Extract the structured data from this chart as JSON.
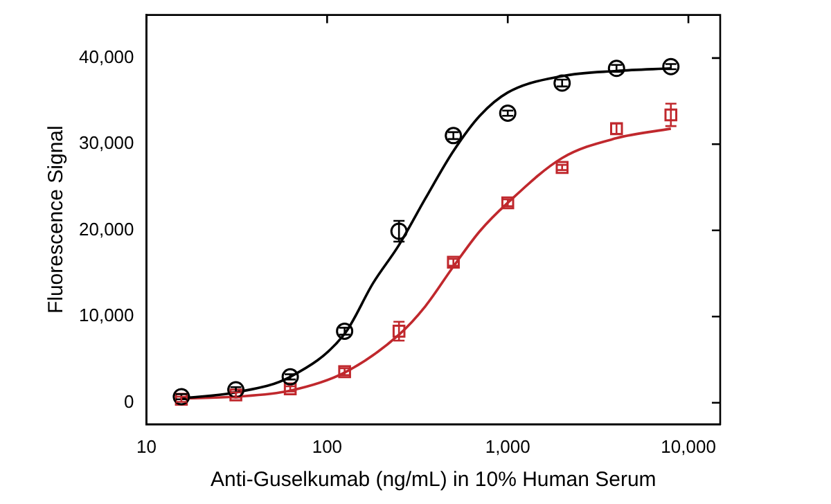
{
  "chart_data": {
    "type": "scatter",
    "xlabel": "Anti-Guselkumab (ng/mL) in 10% Human Serum",
    "ylabel": "Fluorescence Signal",
    "log": "x",
    "xlim": [
      10,
      15000
    ],
    "xticks": [
      10,
      100,
      {
        "value": 1000,
        "label": "1,000"
      },
      {
        "value": 10000,
        "label": "10,000"
      }
    ],
    "ylim": [
      -2500,
      45000
    ],
    "yticks": [
      0,
      {
        "value": 10000,
        "label": "10,000"
      },
      {
        "value": 20000,
        "label": "20,000"
      },
      {
        "value": 30000,
        "label": "30,000"
      },
      {
        "value": 40000,
        "label": "40,000"
      }
    ],
    "grid": false,
    "series": [
      {
        "marker": "circle",
        "color": "#000000",
        "x": [
          15.6,
          31.25,
          62.5,
          125,
          250,
          500,
          1000,
          2000,
          4000,
          8000
        ],
        "values": [
          700,
          1500,
          3000,
          8300,
          19900,
          31000,
          33600,
          37100,
          38800,
          39000
        ],
        "errors": [
          300,
          300,
          300,
          400,
          1200,
          400,
          300,
          400,
          400,
          300
        ]
      },
      {
        "marker": "square",
        "color": "#c0282d",
        "x": [
          15.6,
          31.25,
          62.5,
          125,
          250,
          500,
          1000,
          2000,
          4000,
          8000
        ],
        "values": [
          400,
          900,
          1600,
          3600,
          8300,
          16300,
          23200,
          27300,
          31800,
          33400
        ],
        "errors": [
          300,
          300,
          300,
          400,
          1100,
          400,
          400,
          300,
          600,
          1300
        ]
      },
      {
        "type": "line",
        "color": "#000000",
        "x": [
          15.6,
          31.25,
          62.5,
          125,
          180,
          250,
          350,
          500,
          700,
          1000,
          2000,
          4000,
          8000
        ],
        "values": [
          500,
          1200,
          3000,
          8000,
          13900,
          18300,
          23700,
          29200,
          33300,
          36000,
          37900,
          38500,
          38800
        ]
      },
      {
        "type": "line",
        "color": "#c0282d",
        "x": [
          15.6,
          31.25,
          62.5,
          125,
          250,
          350,
          500,
          700,
          1000,
          2000,
          4000,
          8000
        ],
        "values": [
          500,
          700,
          1400,
          3500,
          7900,
          11200,
          15800,
          19900,
          23200,
          28400,
          30700,
          31800
        ]
      }
    ]
  }
}
